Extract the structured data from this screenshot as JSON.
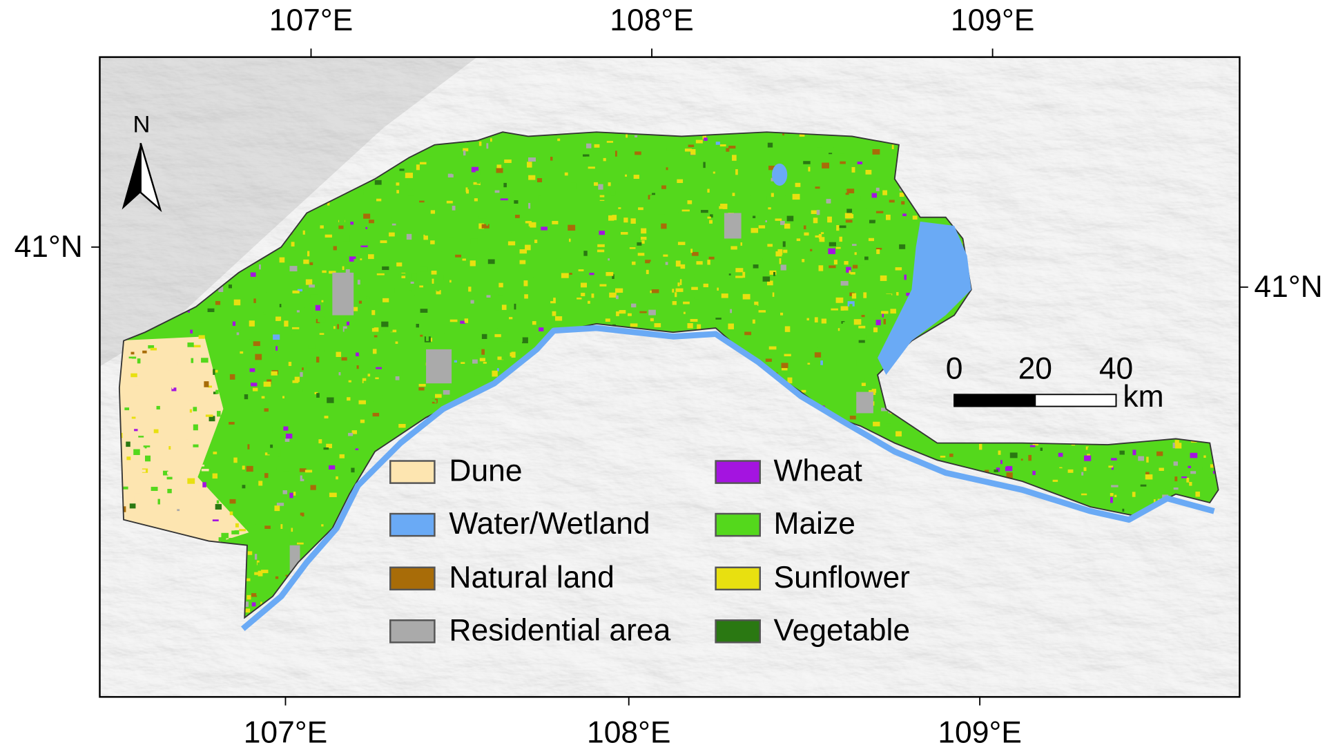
{
  "map": {
    "top_labels": [
      "107°E",
      "108°E",
      "109°E"
    ],
    "bottom_labels": [
      "107°E",
      "108°E",
      "109°E"
    ],
    "left_labels": [
      "41°N"
    ],
    "right_labels": [
      "41°N"
    ],
    "north": "N",
    "legend": [
      {
        "name": "Dune",
        "color": "#fde5b0"
      },
      {
        "name": "Water/Wetland",
        "color": "#6aaaf5"
      },
      {
        "name": "Natural land",
        "color": "#a86c08"
      },
      {
        "name": "Residential area",
        "color": "#aaaaaa"
      },
      {
        "name": "Wheat",
        "color": "#a414e0"
      },
      {
        "name": "Maize",
        "color": "#54d81c"
      },
      {
        "name": "Sunflower",
        "color": "#e8e010"
      },
      {
        "name": "Vegetable",
        "color": "#2a7812"
      }
    ],
    "scale_bar": {
      "ticks": [
        0,
        20,
        40
      ],
      "unit": "km"
    }
  }
}
